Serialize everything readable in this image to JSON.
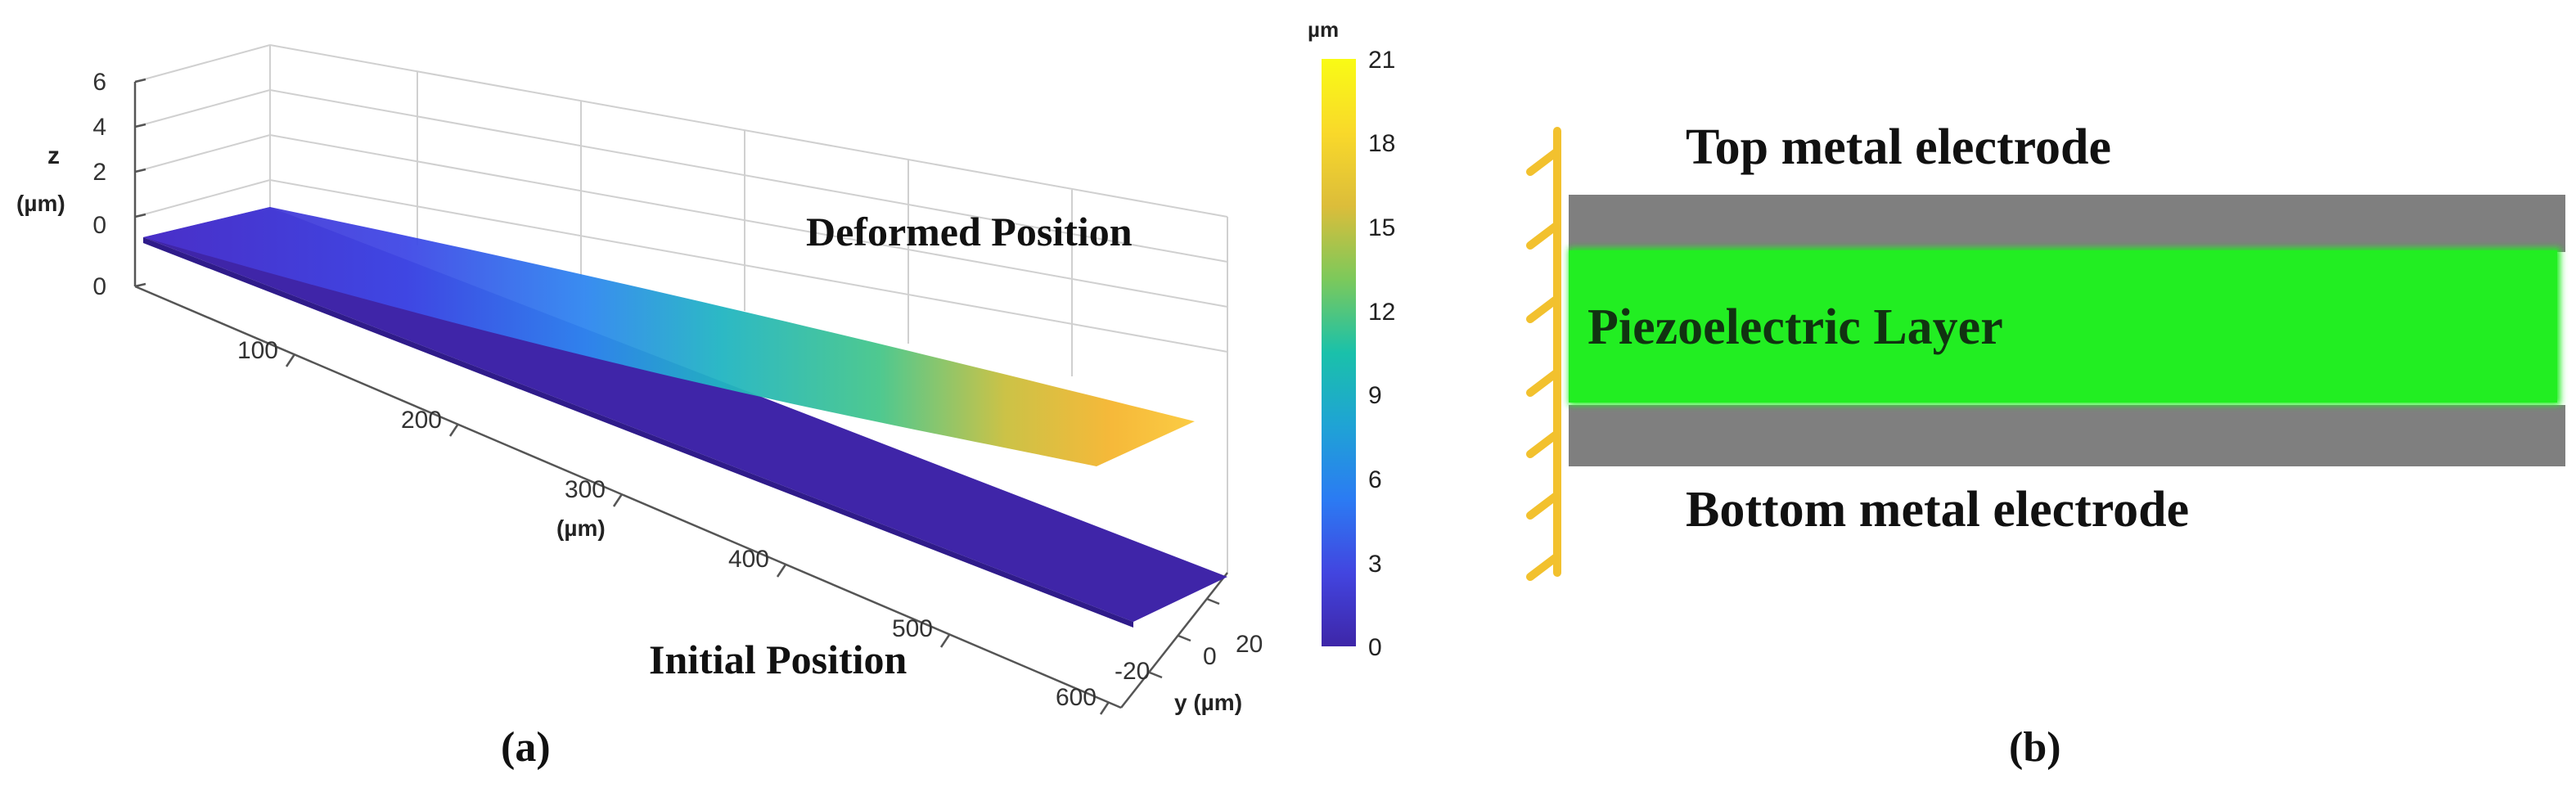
{
  "panel_a": {
    "caption": "(a)",
    "label_deformed": "Deformed Position",
    "label_initial": "Initial Position",
    "z_axis_label_line1": "z",
    "z_axis_label_line2": "(µm)",
    "z_ticks": [
      "6",
      "4",
      "2",
      "0",
      "0"
    ],
    "x_axis_label": "(µm)",
    "x_ticks": [
      "100",
      "200",
      "300",
      "400",
      "500",
      "600"
    ],
    "y_axis_label": "y (µm)",
    "y_ticks": [
      "20",
      "0",
      "-20"
    ],
    "colorbar_unit": "µm",
    "colorbar_ticks": [
      "21",
      "18",
      "15",
      "12",
      "9",
      "6",
      "3",
      "0"
    ],
    "colormap": [
      "#3e26a8",
      "#4245e0",
      "#2b7bf3",
      "#1fa3d5",
      "#1ac1aa",
      "#7cc95b",
      "#dcbd3a",
      "#f9d92a",
      "#f9fb15"
    ]
  },
  "panel_b": {
    "caption": "(b)",
    "label_top": "Top metal electrode",
    "label_piezo": "Piezoelectric Layer",
    "label_bottom": "Bottom metal electrode",
    "colors": {
      "electrode": "#7f7f7f",
      "piezo": "#22ee22",
      "clamp": "#f2c12e"
    }
  }
}
